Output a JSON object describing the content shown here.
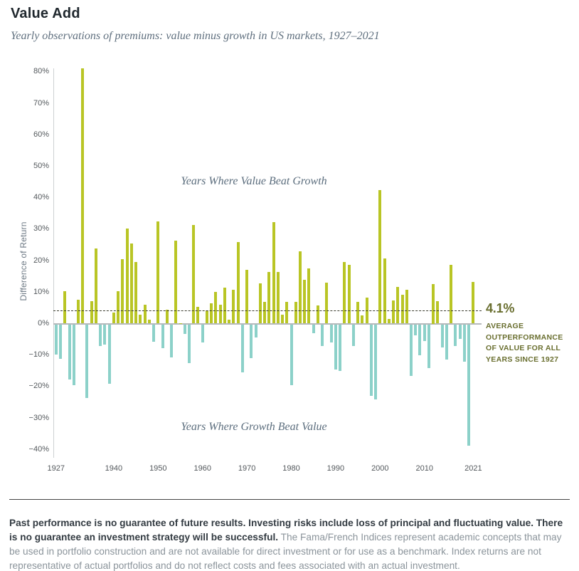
{
  "header": {
    "title": "Value Add",
    "subtitle": "Yearly observations of premiums: value minus growth in US markets, 1927–2021"
  },
  "chart": {
    "y_axis_label": "Difference of Return",
    "label_value_beats": "Years Where Value Beat Growth",
    "label_growth_beats": "Years Where Growth Beat Value",
    "average_label": "4.1%",
    "average_description": "AVERAGE\nOUTPERFORMANCE\nOF VALUE FOR ALL\nYEARS SINCE 1927",
    "colors": {
      "positive_bar": "#b9c525",
      "negative_bar": "#8cd1c9",
      "annotation_text": "#6a6f30",
      "zero_line": "#b6babc",
      "axis_line": "#cdd1d3",
      "average_dash_line": "#3e3f30"
    }
  },
  "chart_data": {
    "type": "bar",
    "title": "Value Add",
    "subtitle": "Yearly observations of premiums: value minus growth in US markets, 1927–2021",
    "xlabel": "",
    "ylabel": "Difference of Return",
    "ylim": [
      -40,
      85
    ],
    "grid": false,
    "average_line": 4.1,
    "y_ticks": [
      {
        "value": 80,
        "label": "80%"
      },
      {
        "value": 70,
        "label": "70%"
      },
      {
        "value": 60,
        "label": "60%"
      },
      {
        "value": 50,
        "label": "50%"
      },
      {
        "value": 40,
        "label": "40%"
      },
      {
        "value": 30,
        "label": "30%"
      },
      {
        "value": 20,
        "label": "20%"
      },
      {
        "value": 10,
        "label": "10%"
      },
      {
        "value": 0,
        "label": "0%"
      },
      {
        "value": -10,
        "label": "−10%"
      },
      {
        "value": -20,
        "label": "−20%"
      },
      {
        "value": -30,
        "label": "−30%"
      },
      {
        "value": -40,
        "label": "−40%"
      }
    ],
    "x_ticks": [
      1927,
      1940,
      1950,
      1960,
      1970,
      1980,
      1990,
      2000,
      2010,
      2021
    ],
    "years": [
      1927,
      1928,
      1929,
      1930,
      1931,
      1932,
      1933,
      1934,
      1935,
      1936,
      1937,
      1938,
      1939,
      1940,
      1941,
      1942,
      1943,
      1944,
      1945,
      1946,
      1947,
      1948,
      1949,
      1950,
      1951,
      1952,
      1953,
      1954,
      1955,
      1956,
      1957,
      1958,
      1959,
      1960,
      1961,
      1962,
      1963,
      1964,
      1965,
      1966,
      1967,
      1968,
      1969,
      1970,
      1971,
      1972,
      1973,
      1974,
      1975,
      1976,
      1977,
      1978,
      1979,
      1980,
      1981,
      1982,
      1983,
      1984,
      1985,
      1986,
      1987,
      1988,
      1989,
      1990,
      1991,
      1992,
      1993,
      1994,
      1995,
      1996,
      1997,
      1998,
      1999,
      2000,
      2001,
      2002,
      2003,
      2004,
      2005,
      2006,
      2007,
      2008,
      2009,
      2010,
      2011,
      2012,
      2013,
      2014,
      2015,
      2016,
      2017,
      2018,
      2019,
      2020,
      2021
    ],
    "values": [
      -9.6,
      -11.0,
      10.3,
      -17.5,
      -19.4,
      7.5,
      81.0,
      -23.4,
      7.1,
      23.9,
      -7.0,
      -6.5,
      -18.9,
      3.4,
      10.4,
      20.5,
      30.3,
      25.5,
      19.5,
      2.8,
      5.9,
      1.2,
      -5.5,
      32.5,
      -7.5,
      4.4,
      -10.5,
      26.3,
      0.2,
      -3.0,
      -12.4,
      31.3,
      5.3,
      -5.8,
      4.2,
      6.5,
      10.1,
      6.0,
      11.4,
      1.2,
      10.8,
      25.8,
      -15.3,
      17.0,
      -10.7,
      -4.1,
      12.8,
      7.0,
      16.4,
      32.3,
      16.3,
      2.9,
      7.0,
      -19.3,
      7.0,
      23.0,
      14.0,
      17.5,
      -2.9,
      5.8,
      -7.0,
      13.1,
      -5.8,
      -14.4,
      -14.8,
      19.6,
      18.7,
      -6.9,
      6.8,
      2.7,
      8.2,
      -22.7,
      -23.9,
      42.5,
      20.8,
      1.4,
      7.4,
      11.7,
      9.2,
      10.7,
      -16.4,
      -3.5,
      -9.9,
      -5.4,
      -13.9,
      12.5,
      7.1,
      -7.3,
      -11.1,
      18.6,
      -7.0,
      -4.6,
      -11.8,
      -38.6,
      13.2
    ]
  },
  "footer": {
    "bold_text": "Past performance is no guarantee of future results. Investing risks include loss of principal and fluctuating value. There is no guarantee an investment strategy will be successful.",
    "regular_text": "The Fama/French Indices represent academic concepts that may be used in portfolio construction and are not available for direct investment or for use as a benchmark.  Index returns are not representative of actual portfolios and do not reflect costs and fees associated with an actual investment."
  }
}
